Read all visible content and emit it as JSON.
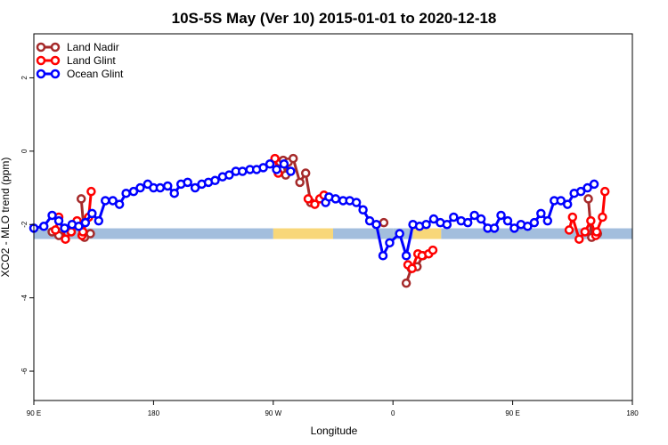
{
  "chart_data": {
    "type": "line",
    "title": "10S-5S May (Ver 10)   2015-01-01 to 2020-12-18",
    "xlabel": "Longitude",
    "ylabel": "XCO2 - MLO trend (ppm)",
    "xlim": [
      90,
      450
    ],
    "ylim": [
      -6.8,
      3.2
    ],
    "x_ticks": [
      {
        "value": 90,
        "label": "90 E"
      },
      {
        "value": 162,
        "label": "180"
      },
      {
        "value": 234,
        "label": "90 W"
      },
      {
        "value": 306,
        "label": "0"
      },
      {
        "value": 378,
        "label": "90 E"
      },
      {
        "value": 450,
        "label": "180"
      }
    ],
    "y_ticks": [
      {
        "value": 2,
        "label": "2"
      },
      {
        "value": 0,
        "label": "0"
      },
      {
        "value": -2,
        "label": "-2"
      },
      {
        "value": -4,
        "label": "-4"
      },
      {
        "value": -6,
        "label": "-6"
      }
    ],
    "land_band": {
      "y_center": -2.25,
      "segments": [
        {
          "x_start": 90,
          "x_end": 234,
          "color": "#a3bedd"
        },
        {
          "x_start": 234,
          "x_end": 270,
          "color": "#f8d779"
        },
        {
          "x_start": 270,
          "x_end": 306,
          "color": "#a3bedd"
        },
        {
          "x_start": 306,
          "x_end": 318,
          "color": "#a3bedd"
        },
        {
          "x_start": 318,
          "x_end": 335,
          "color": "#f8d779"
        },
        {
          "x_start": 335,
          "x_end": 450,
          "color": "#a3bedd"
        }
      ]
    },
    "legend": {
      "position": "top-left",
      "entries": [
        {
          "name": "Land Nadir",
          "color": "#a52a2a"
        },
        {
          "name": "Land Glint",
          "color": "#ff0000"
        },
        {
          "name": "Ocean Glint",
          "color": "#0000ff"
        }
      ]
    },
    "series": [
      {
        "name": "Land Nadir",
        "color": "#a52a2a",
        "points": [
          {
            "x": 101.0,
            "y": -2.2
          },
          {
            "x": 105.0,
            "y": -2.3
          },
          {
            "x": 118.5,
            "y": -1.3
          },
          {
            "x": 120.5,
            "y": -2.35
          },
          {
            "x": 124.0,
            "y": -2.25
          },
          {
            "x": 238.0,
            "y": -0.3
          },
          {
            "x": 240.0,
            "y": -0.25
          },
          {
            "x": 241.5,
            "y": -0.65
          },
          {
            "x": 243.0,
            "y": -0.3
          },
          {
            "x": 246.0,
            "y": -0.2
          },
          {
            "x": 250.0,
            "y": -0.85
          },
          {
            "x": 253.5,
            "y": -0.6
          },
          {
            "x": 256.5,
            "y": -1.4
          },
          {
            "x": 300.5,
            "y": -1.95
          },
          {
            "x": 314.0,
            "y": -3.6
          },
          {
            "x": 317.0,
            "y": -3.2
          },
          {
            "x": 320.5,
            "y": -3.15
          },
          {
            "x": 324.0,
            "y": -2.85
          },
          {
            "x": 423.5,
            "y": -1.3
          },
          {
            "x": 425.5,
            "y": -2.35
          },
          {
            "x": 429.0,
            "y": -2.25
          }
        ]
      },
      {
        "name": "Land Glint",
        "color": "#ff0000",
        "points": [
          {
            "x": 103.0,
            "y": -2.15
          },
          {
            "x": 105.0,
            "y": -1.8
          },
          {
            "x": 109.0,
            "y": -2.4
          },
          {
            "x": 112.5,
            "y": -2.2
          },
          {
            "x": 116.0,
            "y": -1.9
          },
          {
            "x": 119.0,
            "y": -2.3
          },
          {
            "x": 119.5,
            "y": -2.2
          },
          {
            "x": 123.0,
            "y": -1.8
          },
          {
            "x": 124.5,
            "y": -1.1
          },
          {
            "x": 235.0,
            "y": -0.2
          },
          {
            "x": 237.0,
            "y": -0.6
          },
          {
            "x": 255.0,
            "y": -1.3
          },
          {
            "x": 259.0,
            "y": -1.45
          },
          {
            "x": 262.0,
            "y": -1.3
          },
          {
            "x": 264.5,
            "y": -1.2
          },
          {
            "x": 315.0,
            "y": -3.1
          },
          {
            "x": 317.5,
            "y": -3.2
          },
          {
            "x": 321.0,
            "y": -2.8
          },
          {
            "x": 323.5,
            "y": -2.85
          },
          {
            "x": 327.5,
            "y": -2.8
          },
          {
            "x": 330.0,
            "y": -2.7
          },
          {
            "x": 412.0,
            "y": -2.15
          },
          {
            "x": 414.0,
            "y": -1.8
          },
          {
            "x": 418.0,
            "y": -2.4
          },
          {
            "x": 421.5,
            "y": -2.2
          },
          {
            "x": 425.0,
            "y": -1.9
          },
          {
            "x": 428.0,
            "y": -2.3
          },
          {
            "x": 428.5,
            "y": -2.2
          },
          {
            "x": 432.0,
            "y": -1.8
          },
          {
            "x": 433.5,
            "y": -1.1
          }
        ]
      },
      {
        "name": "Ocean Glint",
        "color": "#0000ff",
        "points": [
          {
            "x": 90.0,
            "y": -2.1
          },
          {
            "x": 96.0,
            "y": -2.05
          },
          {
            "x": 101.0,
            "y": -1.75
          },
          {
            "x": 105.0,
            "y": -1.9
          },
          {
            "x": 108.5,
            "y": -2.1
          },
          {
            "x": 113.0,
            "y": -2.0
          },
          {
            "x": 117.0,
            "y": -2.05
          },
          {
            "x": 121.0,
            "y": -1.95
          },
          {
            "x": 125.0,
            "y": -1.7
          },
          {
            "x": 129.0,
            "y": -1.9
          },
          {
            "x": 133.0,
            "y": -1.35
          },
          {
            "x": 137.5,
            "y": -1.35
          },
          {
            "x": 141.5,
            "y": -1.45
          },
          {
            "x": 145.5,
            "y": -1.15
          },
          {
            "x": 150.0,
            "y": -1.1
          },
          {
            "x": 154.0,
            "y": -1.0
          },
          {
            "x": 158.5,
            "y": -0.9
          },
          {
            "x": 162.0,
            "y": -1.0
          },
          {
            "x": 166.0,
            "y": -1.0
          },
          {
            "x": 170.5,
            "y": -0.95
          },
          {
            "x": 174.5,
            "y": -1.15
          },
          {
            "x": 178.5,
            "y": -0.9
          },
          {
            "x": 182.5,
            "y": -0.85
          },
          {
            "x": 187.0,
            "y": -1.0
          },
          {
            "x": 191.0,
            "y": -0.9
          },
          {
            "x": 195.0,
            "y": -0.85
          },
          {
            "x": 199.0,
            "y": -0.8
          },
          {
            "x": 203.5,
            "y": -0.7
          },
          {
            "x": 207.5,
            "y": -0.65
          },
          {
            "x": 211.5,
            "y": -0.55
          },
          {
            "x": 215.5,
            "y": -0.55
          },
          {
            "x": 220.0,
            "y": -0.5
          },
          {
            "x": 224.0,
            "y": -0.5
          },
          {
            "x": 228.0,
            "y": -0.45
          },
          {
            "x": 232.0,
            "y": -0.35
          },
          {
            "x": 236.0,
            "y": -0.5
          },
          {
            "x": 240.5,
            "y": -0.35
          },
          {
            "x": 244.5,
            "y": -0.55
          },
          {
            "x": 265.5,
            "y": -1.4
          },
          {
            "x": 267.5,
            "y": -1.25
          },
          {
            "x": 271.5,
            "y": -1.3
          },
          {
            "x": 276.0,
            "y": -1.35
          },
          {
            "x": 280.0,
            "y": -1.35
          },
          {
            "x": 284.0,
            "y": -1.4
          },
          {
            "x": 288.0,
            "y": -1.6
          },
          {
            "x": 292.0,
            "y": -1.9
          },
          {
            "x": 296.0,
            "y": -2.0
          },
          {
            "x": 300.0,
            "y": -2.85
          },
          {
            "x": 304.0,
            "y": -2.5
          },
          {
            "x": 310.0,
            "y": -2.25
          },
          {
            "x": 314.0,
            "y": -2.85
          },
          {
            "x": 318.0,
            "y": -2.0
          },
          {
            "x": 322.0,
            "y": -2.05
          },
          {
            "x": 326.0,
            "y": -2.0
          },
          {
            "x": 330.5,
            "y": -1.85
          },
          {
            "x": 334.5,
            "y": -1.95
          },
          {
            "x": 338.5,
            "y": -2.0
          },
          {
            "x": 342.5,
            "y": -1.8
          },
          {
            "x": 347.0,
            "y": -1.9
          },
          {
            "x": 351.0,
            "y": -1.95
          },
          {
            "x": 355.0,
            "y": -1.75
          },
          {
            "x": 359.0,
            "y": -1.85
          },
          {
            "x": 363.0,
            "y": -2.1
          },
          {
            "x": 367.0,
            "y": -2.1
          },
          {
            "x": 371.0,
            "y": -1.75
          },
          {
            "x": 375.0,
            "y": -1.9
          },
          {
            "x": 379.0,
            "y": -2.1
          },
          {
            "x": 383.0,
            "y": -2.0
          },
          {
            "x": 387.0,
            "y": -2.05
          },
          {
            "x": 391.0,
            "y": -1.95
          },
          {
            "x": 395.0,
            "y": -1.7
          },
          {
            "x": 399.0,
            "y": -1.9
          },
          {
            "x": 403.0,
            "y": -1.35
          },
          {
            "x": 407.0,
            "y": -1.35
          },
          {
            "x": 411.0,
            "y": -1.45
          },
          {
            "x": 415.0,
            "y": -1.15
          },
          {
            "x": 419.0,
            "y": -1.1
          },
          {
            "x": 423.0,
            "y": -1.0
          },
          {
            "x": 427.0,
            "y": -0.9
          }
        ]
      }
    ]
  }
}
